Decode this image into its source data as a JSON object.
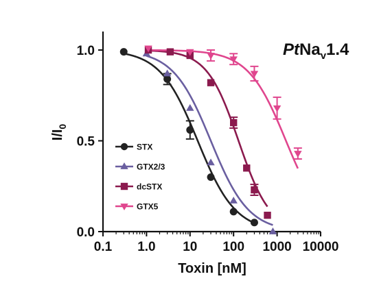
{
  "chart_data": {
    "type": "scatter",
    "title_parts": {
      "italic": "Pt",
      "main": "Na",
      "sub": "v",
      "tail": "1.4"
    },
    "xlabel": "Toxin [nM]",
    "ylabel": {
      "main": "I/I",
      "sub": "0"
    },
    "xscale": "log",
    "xlim": [
      0.1,
      10000
    ],
    "ylim": [
      0.0,
      1.0
    ],
    "xticks": [
      0.1,
      1,
      10,
      100,
      1000,
      10000
    ],
    "xtick_labels": [
      "0.1",
      "1.0",
      "10",
      "100",
      "1000",
      "10000"
    ],
    "yticks": [
      0.0,
      0.5,
      1.0
    ],
    "ytick_labels": [
      "0.0",
      "0.5",
      "1.0"
    ],
    "legend_position": "lower-left",
    "series": [
      {
        "name": "STX",
        "color": "#222222",
        "marker": "circle",
        "x": [
          0.3,
          3,
          10,
          30,
          100,
          300
        ],
        "y": [
          0.99,
          0.84,
          0.56,
          0.3,
          0.11,
          0.05
        ],
        "err": [
          0.0,
          0.03,
          0.05,
          0.0,
          0.0,
          0.0
        ],
        "fit_ic50": 15,
        "fit_hill": 1.0
      },
      {
        "name": "GTX2/3",
        "color": "#6a5fa0",
        "marker": "triangle-up",
        "x": [
          1,
          3,
          10,
          30,
          100,
          800
        ],
        "y": [
          0.98,
          0.87,
          0.68,
          0.38,
          0.17,
          0.0
        ],
        "err": [
          0.0,
          0.0,
          0.0,
          0.0,
          0.0,
          0.0
        ],
        "fit_ic50": 30,
        "fit_hill": 1.0
      },
      {
        "name": "dcSTX",
        "color": "#8b1a4e",
        "marker": "square",
        "x": [
          1.1,
          3.5,
          10,
          30,
          100,
          200,
          300,
          600
        ],
        "y": [
          1.0,
          0.99,
          0.97,
          0.82,
          0.6,
          0.35,
          0.23,
          0.09
        ],
        "err": [
          0.0,
          0.0,
          0.0,
          0.0,
          0.03,
          0.0,
          0.03,
          0.0
        ],
        "fit_ic50": 130,
        "fit_hill": 1.2
      },
      {
        "name": "GTX5",
        "color": "#e0468e",
        "marker": "triangle-down",
        "x": [
          1.1,
          10,
          30,
          100,
          300,
          1000,
          3000
        ],
        "y": [
          1.01,
          0.99,
          0.97,
          0.95,
          0.87,
          0.68,
          0.43
        ],
        "err": [
          0.0,
          0.0,
          0.03,
          0.03,
          0.04,
          0.06,
          0.03
        ],
        "fit_ic50": 1600,
        "fit_hill": 1.0
      }
    ]
  }
}
